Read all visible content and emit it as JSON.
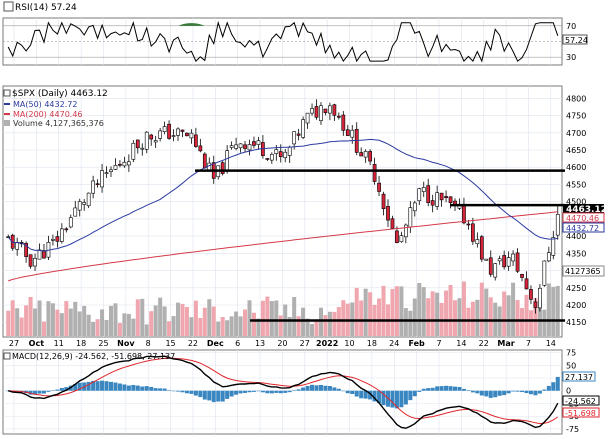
{
  "colors": {
    "up": "#ffffff",
    "down": "#d6243a",
    "wick": "#000000",
    "ma50": "#2b3aa0",
    "ma200": "#d43a4a",
    "vol_up": "#b0b0b0",
    "vol_down": "#f0a6ae",
    "macd_line": "#000000",
    "signal_line": "#e0262b",
    "hist": "#3a86c0",
    "rsi_line": "#000000",
    "rsi_fill": "#3a7a3a",
    "panel_border": "#7a7a7a",
    "grid": "#dde3ee",
    "support": "#000000"
  },
  "rsi": {
    "label": "RSI(14) 57.24",
    "last": 57.24,
    "last_label": "57.24",
    "ticks": [
      "70",
      "50",
      "30"
    ]
  },
  "main": {
    "title": "$SPX (Daily) 4463.12",
    "ma50": {
      "label": "MA(50) 4432.72",
      "last_label": "4432.72"
    },
    "ma200": {
      "label": "MA(200) 4470.46",
      "last_label": "4470.46"
    },
    "volume": {
      "label": "Volume 4,127,365,376",
      "last_label": "4127365"
    },
    "last_price": "4463.12",
    "ticks": [
      "4800",
      "4750",
      "4700",
      "4650",
      "4600",
      "4550",
      "4500",
      "4450",
      "4400",
      "4350",
      "4300",
      "4250",
      "4200",
      "4150"
    ]
  },
  "xaxis": {
    "labels": [
      "27",
      "Oct",
      "11",
      "18",
      "25",
      "Nov",
      "8",
      "15",
      "22",
      "Dec",
      "6",
      "13",
      "20",
      "27",
      "2022",
      "10",
      "18",
      "24",
      "Feb",
      "7",
      "14",
      "22",
      "Mar",
      "7",
      "14"
    ]
  },
  "macd": {
    "label": "MACD(12,26,9) -24.562, -51.698, 27.137",
    "ticks": [
      "75",
      "50",
      "25",
      "0",
      "-25",
      "-50",
      "-75"
    ],
    "last_labels": [
      "27.137",
      "-24.562",
      "-51.698"
    ]
  },
  "chart_data": [
    {
      "type": "line",
      "name": "RSI(14)",
      "ylim": [
        20,
        80
      ],
      "reference_lines": [
        30,
        70
      ],
      "last": 57.24
    },
    {
      "type": "candlestick",
      "title": "$SPX (Daily) 4463.12",
      "ylim": [
        4110,
        4830
      ],
      "x": [
        "Sep 27",
        "Oct",
        "Oct 11",
        "Oct 18",
        "Oct 25",
        "Nov",
        "Nov 8",
        "Nov 15",
        "Nov 22",
        "Dec",
        "Dec 6",
        "Dec 13",
        "Dec 20",
        "Dec 27",
        "2022",
        "Jan 10",
        "Jan 18",
        "Jan 24",
        "Feb",
        "Feb 7",
        "Feb 14",
        "Feb 22",
        "Mar",
        "Mar 7",
        "Mar 14"
      ],
      "close_approx": [
        4390,
        4330,
        4380,
        4480,
        4560,
        4620,
        4690,
        4700,
        4690,
        4560,
        4680,
        4660,
        4620,
        4740,
        4790,
        4690,
        4580,
        4370,
        4530,
        4500,
        4450,
        4300,
        4340,
        4200,
        4463
      ],
      "series": [
        {
          "name": "MA(50)",
          "last": 4432.72
        },
        {
          "name": "MA(200)",
          "last": 4470.46
        }
      ],
      "horizontal_lines": [
        4590,
        4490,
        4155
      ],
      "last": 4463.12
    },
    {
      "type": "bar",
      "name": "Volume",
      "last": 4127365376
    },
    {
      "type": "line",
      "title": "MACD(12,26,9)",
      "ylim": [
        -85,
        80
      ],
      "series": [
        {
          "name": "MACD",
          "last": -24.562
        },
        {
          "name": "Signal",
          "last": -51.698
        },
        {
          "name": "Histogram",
          "last": 27.137
        }
      ]
    }
  ]
}
